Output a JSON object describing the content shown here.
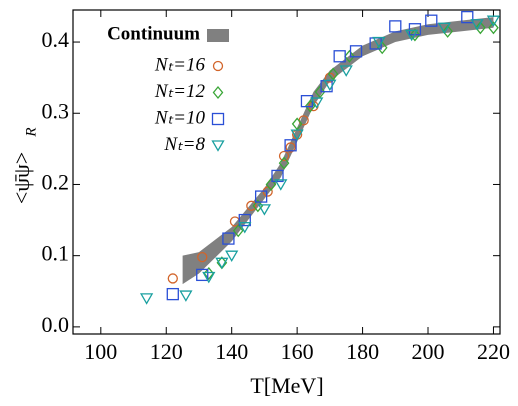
{
  "chart_data": {
    "type": "scatter",
    "x_label": "T[MeV]",
    "y_label": "<ψ̄ψ>",
    "y_label_subscript": "R",
    "xlim": [
      91.5,
      222
    ],
    "ylim": [
      -0.01,
      0.445
    ],
    "xticks": [
      100,
      120,
      140,
      160,
      180,
      200,
      220
    ],
    "yticks": [
      {
        "value": 0,
        "label": "0.0"
      },
      0.1,
      0.2,
      0.3,
      0.4
    ],
    "band": {
      "name": "Continuum",
      "color": "#808080",
      "x": [
        125,
        130,
        140,
        150,
        155,
        160,
        165,
        170,
        180,
        190,
        200,
        210,
        220
      ],
      "lower": [
        0.06,
        0.075,
        0.12,
        0.18,
        0.21,
        0.26,
        0.31,
        0.345,
        0.38,
        0.4,
        0.41,
        0.415,
        0.42
      ],
      "upper": [
        0.1,
        0.105,
        0.14,
        0.195,
        0.23,
        0.28,
        0.33,
        0.36,
        0.395,
        0.415,
        0.425,
        0.43,
        0.435
      ]
    },
    "series": [
      {
        "name": "Nₜ=16",
        "marker": "circle",
        "color": "#d2642a",
        "x": [
          122,
          131,
          141,
          146,
          151,
          156,
          158,
          160,
          162,
          165,
          170
        ],
        "values": [
          0.068,
          0.098,
          0.148,
          0.17,
          0.19,
          0.24,
          0.252,
          0.27,
          0.29,
          0.31,
          0.35
        ]
      },
      {
        "name": "Nₜ=12",
        "marker": "diamond",
        "color": "#3aa637",
        "x": [
          133,
          137,
          142,
          148,
          152,
          156,
          160,
          164,
          167,
          171,
          176,
          186,
          196,
          206,
          216,
          220
        ],
        "values": [
          0.075,
          0.09,
          0.135,
          0.17,
          0.2,
          0.23,
          0.285,
          0.31,
          0.33,
          0.355,
          0.38,
          0.392,
          0.41,
          0.415,
          0.42,
          0.42
        ]
      },
      {
        "name": "Nₜ=10",
        "marker": "square",
        "color": "#2a4fd6",
        "x": [
          122,
          131,
          139,
          144,
          149,
          154,
          158,
          163,
          169,
          173,
          178,
          184,
          190,
          196,
          201,
          212
        ],
        "values": [
          0.046,
          0.073,
          0.124,
          0.15,
          0.183,
          0.212,
          0.255,
          0.317,
          0.338,
          0.38,
          0.387,
          0.398,
          0.422,
          0.418,
          0.43,
          0.435
        ]
      },
      {
        "name": "Nₜ=8",
        "marker": "triangle",
        "color": "#1aa0a0",
        "x": [
          114,
          126,
          133,
          137,
          140,
          144,
          150,
          155,
          160,
          166,
          170,
          175,
          185,
          195,
          205,
          215,
          220
        ],
        "values": [
          0.04,
          0.044,
          0.07,
          0.09,
          0.1,
          0.14,
          0.165,
          0.2,
          0.27,
          0.315,
          0.34,
          0.36,
          0.4,
          0.41,
          0.42,
          0.425,
          0.43
        ]
      }
    ]
  }
}
